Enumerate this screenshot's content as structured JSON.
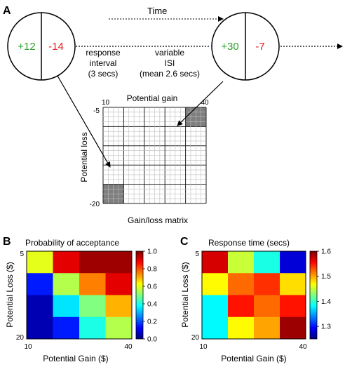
{
  "panel_a": {
    "letter": "A",
    "time_label": "Time",
    "left_circle": {
      "gain": "+12",
      "loss": "-14"
    },
    "right_circle": {
      "gain": "+30",
      "loss": "-7"
    },
    "response_interval": [
      "response",
      "interval",
      "(3 secs)"
    ],
    "isi": [
      "variable",
      "ISI",
      "(mean 2.6 secs)"
    ],
    "matrix": {
      "top_label": "Potential gain",
      "side_label": "Potential loss",
      "caption": "Gain/loss matrix",
      "x_min": "10",
      "x_max": "40",
      "y_min": "-5",
      "y_max": "-20",
      "highlighted_cells": [
        {
          "col": 4,
          "row": 0
        },
        {
          "col": 0,
          "row": 4
        }
      ]
    }
  },
  "panel_b": {
    "letter": "B",
    "title": "Probability of acceptance",
    "xlabel": "Potential Gain ($)",
    "ylabel": "Potential Loss ($)",
    "x_ticks": [
      "10",
      "40"
    ],
    "y_ticks": [
      "5",
      "20"
    ],
    "colorbar_ticks": [
      "1.0",
      "0.8",
      "0.6",
      "0.4",
      "0.2",
      "0.0"
    ]
  },
  "panel_c": {
    "letter": "C",
    "title": "Response time (secs)",
    "xlabel": "Potential Gain ($)",
    "ylabel": "Potential Loss ($)",
    "x_ticks": [
      "10",
      "40"
    ],
    "y_ticks": [
      "5",
      "20"
    ],
    "colorbar_ticks": [
      "1.6",
      "1.5",
      "1.4",
      "1.3"
    ]
  },
  "colors": {
    "gain_green": "#2ca02c",
    "loss_red": "#e02020",
    "cell_gray": "#7f7f7f"
  },
  "chart_data": [
    {
      "type": "heatmap",
      "title": "Probability of acceptance",
      "xlabel": "Potential Gain ($)",
      "ylabel": "Potential Loss ($)",
      "x_range": [
        10,
        40
      ],
      "y_range": [
        5,
        20
      ],
      "colorbar_range": [
        0.0,
        1.0
      ],
      "values": [
        [
          0.6,
          0.9,
          0.97,
          0.97
        ],
        [
          0.15,
          0.55,
          0.75,
          0.9
        ],
        [
          0.05,
          0.35,
          0.5,
          0.7
        ],
        [
          0.05,
          0.15,
          0.4,
          0.55
        ]
      ]
    },
    {
      "type": "heatmap",
      "title": "Response time (secs)",
      "xlabel": "Potential Gain ($)",
      "ylabel": "Potential Loss ($)",
      "x_range": [
        10,
        40
      ],
      "y_range": [
        5,
        20
      ],
      "colorbar_range": [
        1.25,
        1.6
      ],
      "values": [
        [
          1.57,
          1.45,
          1.39,
          1.28
        ],
        [
          1.47,
          1.52,
          1.54,
          1.48
        ],
        [
          1.38,
          1.55,
          1.52,
          1.55
        ],
        [
          1.38,
          1.47,
          1.5,
          1.59
        ]
      ]
    }
  ]
}
